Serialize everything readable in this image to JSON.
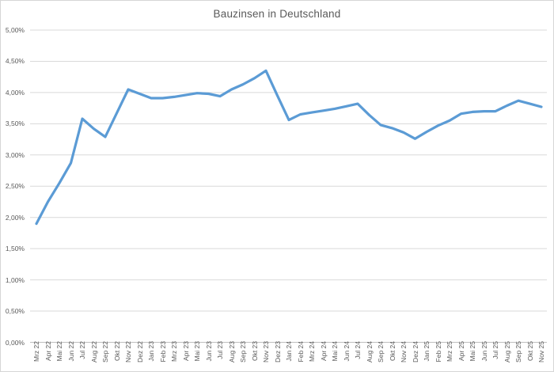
{
  "window": {
    "background_color": "#FFFFFF",
    "border_color": "#D6D6D6"
  },
  "chart_data": {
    "type": "line",
    "title": "Bauzinsen in Deutschland",
    "categories": [
      "Mrz 22",
      "Apr 22",
      "Mai 22",
      "Jun 22",
      "Jul 22",
      "Aug 22",
      "Sep 22",
      "Okt 22",
      "Nov 22",
      "Dez 22",
      "Jan 23",
      "Feb 23",
      "Mrz 23",
      "Apr 23",
      "Mai 23",
      "Jun 23",
      "Jul 23",
      "Aug 23",
      "Sep 23",
      "Okt 23",
      "Nov 23",
      "Dez 23",
      "Jan 24",
      "Feb 24",
      "Mrz 24",
      "Apr 24",
      "Mai 24",
      "Jun 24",
      "Jul 24",
      "Aug 24",
      "Sep 24",
      "Okt 24",
      "Nov 24",
      "Dez 24",
      "Jan 25",
      "Feb 25",
      "Mrz 25",
      "Apr 25",
      "Mai 25",
      "Jun 25",
      "Jul 25",
      "Aug 25",
      "Sep 25",
      "Okt 25",
      "Nov 25"
    ],
    "values": [
      1.9,
      2.25,
      2.55,
      2.87,
      3.58,
      3.42,
      3.29,
      3.67,
      4.05,
      3.98,
      3.91,
      3.91,
      3.93,
      3.96,
      3.99,
      3.98,
      3.94,
      4.05,
      4.13,
      4.23,
      4.35,
      3.95,
      3.56,
      3.65,
      3.68,
      3.71,
      3.74,
      3.78,
      3.82,
      3.64,
      3.48,
      3.43,
      3.36,
      3.26,
      3.37,
      3.47,
      3.55,
      3.66,
      3.69,
      3.7,
      3.7,
      3.79,
      3.87,
      3.82,
      3.77
    ],
    "xlabel": "",
    "ylabel": "",
    "ylim": [
      0,
      5
    ],
    "y_tick_step": 0.5,
    "y_tick_labels": [
      "5,00%",
      "4,50%",
      "4,00%",
      "3,50%",
      "3,00%",
      "2,50%",
      "2,00%",
      "1,50%",
      "1,00%",
      "0,50%",
      "0,00%"
    ],
    "grid": true,
    "legend": "none",
    "line_color": "#5B9BD5",
    "gridline_color": "#D9D9D9",
    "axis_line_color": "#BFBFBF",
    "label_color": "#595959",
    "title_color": "#595959"
  }
}
